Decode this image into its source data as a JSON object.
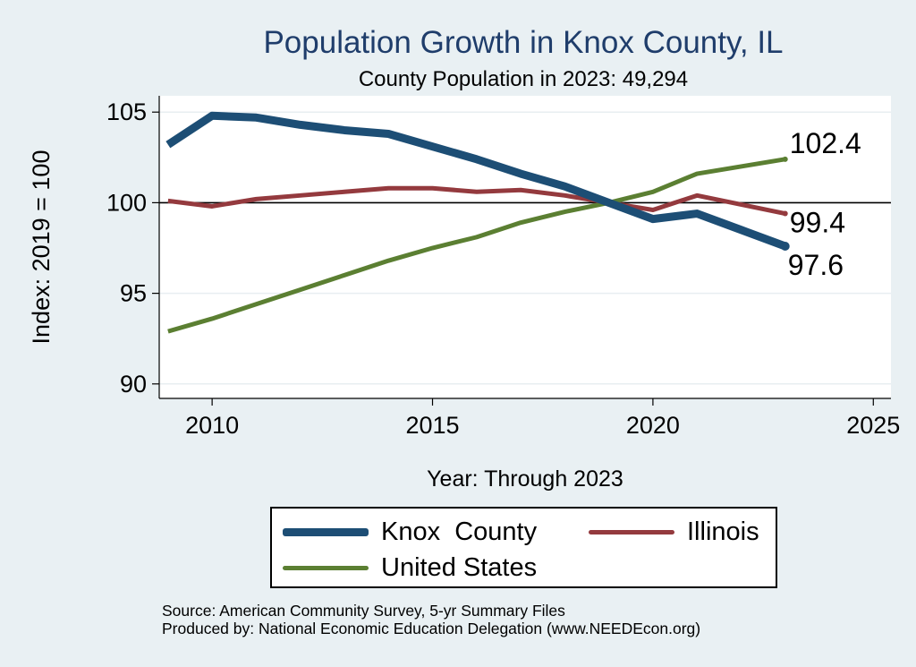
{
  "header": {
    "title": "Population Growth in Knox County, IL",
    "subtitle": "County Population in 2023: 49,294"
  },
  "chart_data": {
    "type": "line",
    "xlabel": "Year: Through 2023",
    "ylabel": "Index: 2019 = 100",
    "xlim": [
      2008.8,
      2025.4
    ],
    "ylim": [
      89.2,
      105.9
    ],
    "xticks": [
      2010,
      2015,
      2020,
      2025
    ],
    "yticks": [
      90,
      95,
      100,
      105
    ],
    "reference_line": 100,
    "grid": true,
    "x": [
      2009,
      2010,
      2011,
      2012,
      2013,
      2014,
      2015,
      2016,
      2017,
      2018,
      2019,
      2020,
      2021,
      2022,
      2023
    ],
    "series": [
      {
        "name": "Knox  County",
        "color": "#1d4e75",
        "width": 9,
        "values": [
          103.2,
          104.8,
          104.7,
          104.3,
          104.0,
          103.8,
          103.1,
          102.4,
          101.6,
          100.9,
          100.0,
          99.1,
          99.4,
          98.5,
          97.6
        ],
        "end_label": "97.6"
      },
      {
        "name": "Illinois",
        "color": "#943a3e",
        "width": 5,
        "values": [
          100.1,
          99.8,
          100.2,
          100.4,
          100.6,
          100.8,
          100.8,
          100.6,
          100.7,
          100.4,
          100.0,
          99.6,
          100.4,
          99.9,
          99.4
        ],
        "end_label": "99.4"
      },
      {
        "name": "United States",
        "color": "#5b7f32",
        "width": 5,
        "values": [
          92.9,
          93.6,
          94.4,
          95.2,
          96.0,
          96.8,
          97.5,
          98.1,
          98.9,
          99.5,
          100.0,
          100.6,
          101.6,
          102.0,
          102.4
        ],
        "end_label": "102.4"
      }
    ],
    "legend": {
      "position": "bottom",
      "items": [
        "Knox  County",
        "Illinois",
        "United States"
      ]
    }
  },
  "footer": {
    "source": "Source: American Community Survey, 5-yr Summary Files",
    "produced_by": "Produced by: National Economic Education Delegation (www.NEEDEcon.org)"
  }
}
